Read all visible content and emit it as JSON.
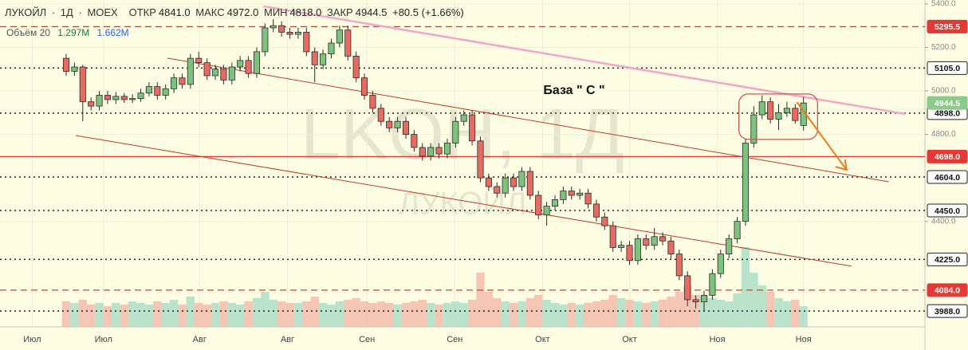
{
  "chart_data": {
    "type": "candlestick",
    "header": {
      "symbol": "ЛУКОЙЛ",
      "separator": "·",
      "interval": "1Д",
      "exchange": "MOEX",
      "ohlc": [
        {
          "label": "ОТКР",
          "value": "4841.0"
        },
        {
          "label": "МАКС",
          "value": "4972.0"
        },
        {
          "label": "МИН",
          "value": "4818.0"
        },
        {
          "label": "ЗАКР",
          "value": "4944.5"
        }
      ],
      "change": "+80.5 (+1.66%)"
    },
    "volume_legend": {
      "label": "Объём 20",
      "values": [
        "1.297M",
        "1.662M"
      ]
    },
    "watermark": {
      "main": "LKOH, 1Д",
      "sub": "ЛУКОЙЛ"
    },
    "annotation": "База \" С \"",
    "xlim": [
      -7.99,
      103.66
    ],
    "ylim": [
      3915,
      5418
    ],
    "vlim": [
      0,
      8
    ],
    "xticks": [
      {
        "value": -4.1,
        "label": "Июл"
      },
      {
        "value": 4.5,
        "label": "Июл"
      },
      {
        "value": 16.1,
        "label": "Авг"
      },
      {
        "value": 26.7,
        "label": "Авг"
      },
      {
        "value": 36.3,
        "label": "Сен"
      },
      {
        "value": 46.9,
        "label": "Сен"
      },
      {
        "value": 57.5,
        "label": "Окт"
      },
      {
        "value": 68.0,
        "label": "Окт"
      },
      {
        "value": 78.6,
        "label": "Ноя"
      },
      {
        "value": 89.0,
        "label": "Ноя"
      }
    ],
    "yticks": [
      {
        "value": 5400,
        "label": "5400.0"
      },
      {
        "value": 5200,
        "label": "5200.0"
      },
      {
        "value": 5000,
        "label": "5000.0"
      },
      {
        "value": 4800,
        "label": "4800.0"
      },
      {
        "value": 4400,
        "label": "4400.0"
      }
    ],
    "grid": true,
    "colors": {
      "up": "#7cc47e",
      "down": "#e86b63",
      "outline": "#2b2b2b",
      "up_volume": "#a9dcc6",
      "down_volume": "#f2b8a8",
      "background": "#fdfde4"
    },
    "levels": [
      {
        "value": 5295.5,
        "label": "5295.5",
        "color": "#e53935",
        "style": "dashed"
      },
      {
        "value": 5105,
        "label": "5105.0",
        "color": "#222222",
        "style": "dotted"
      },
      {
        "value": 4898,
        "label": "4898.0",
        "color": "#222222",
        "style": "dotted"
      },
      {
        "value": 4698,
        "label": "4698.0",
        "color": "#e53935",
        "style": "solid"
      },
      {
        "value": 4604,
        "label": "4604.0",
        "color": "#222222",
        "style": "dotted"
      },
      {
        "value": 4450,
        "label": "4450.0",
        "color": "#222222",
        "style": "dotted"
      },
      {
        "value": 4225,
        "label": "4225.0",
        "color": "#222222",
        "style": "dotted"
      },
      {
        "value": 4084,
        "label": "4084.0",
        "color": "#e53935",
        "style": "dashed"
      },
      {
        "value": 3988,
        "label": "3988.0",
        "color": "#222222",
        "style": "dotted"
      }
    ],
    "last_price": {
      "value": 4944.5,
      "label": "4944.5",
      "color": "#8cc98a"
    },
    "trendlines": [
      {
        "color": "#f4a6c8",
        "x": [
          23.8,
          101.3
        ],
        "y": [
          5389,
          4894
        ]
      },
      {
        "color": "#c0392b",
        "x": [
          12.2,
          99.3
        ],
        "y": [
          5151,
          4582
        ]
      },
      {
        "color": "#c0392b",
        "x": [
          1.15,
          94.8
        ],
        "y": [
          4795,
          4194
        ]
      }
    ],
    "arrow": {
      "color": "#f07a1a",
      "x": [
        88.2,
        94.2
      ],
      "y": [
        4949,
        4637
      ]
    },
    "box": {
      "color": "#d9534f",
      "x": [
        81.2,
        90.7
      ],
      "y": [
        4986,
        4777
      ]
    },
    "series": {
      "open": [
        5150,
        5090,
        5110,
        4950,
        4930,
        4980,
        4960,
        4975,
        4960,
        4965,
        4990,
        5020,
        4980,
        5010,
        5060,
        5030,
        5150,
        5130,
        5070,
        5100,
        5050,
        5110,
        5140,
        5080,
        5180,
        5290,
        5300,
        5270,
        5260,
        5270,
        5180,
        5120,
        5170,
        5220,
        5280,
        5160,
        5060,
        4980,
        4920,
        4860,
        4830,
        4860,
        4800,
        4740,
        4700,
        4740,
        4710,
        4760,
        4860,
        4890,
        4770,
        4600,
        4560,
        4530,
        4600,
        4560,
        4630,
        4520,
        4430,
        4470,
        4500,
        4540,
        4520,
        4530,
        4480,
        4420,
        4380,
        4280,
        4290,
        4220,
        4320,
        4290,
        4330,
        4310,
        4250,
        4150,
        4040,
        4030,
        4060,
        4160,
        4250,
        4320,
        4400,
        4760,
        4890,
        4950,
        4870,
        4900,
        4920,
        4841
      ],
      "high": [
        5170,
        5130,
        5120,
        4970,
        5000,
        5000,
        4995,
        4990,
        4985,
        5010,
        5040,
        5040,
        5030,
        5080,
        5080,
        5170,
        5180,
        5150,
        5120,
        5120,
        5130,
        5160,
        5160,
        5200,
        5310,
        5330,
        5320,
        5290,
        5290,
        5290,
        5200,
        5190,
        5240,
        5300,
        5300,
        5180,
        5080,
        5000,
        4940,
        4880,
        4880,
        4880,
        4820,
        4760,
        4760,
        4760,
        4780,
        4880,
        4910,
        4910,
        4790,
        4620,
        4580,
        4620,
        4620,
        4650,
        4650,
        4540,
        4490,
        4520,
        4560,
        4560,
        4550,
        4550,
        4500,
        4440,
        4400,
        4310,
        4310,
        4340,
        4340,
        4370,
        4350,
        4330,
        4270,
        4170,
        4060,
        4080,
        4180,
        4270,
        4340,
        4420,
        4780,
        4930,
        4980,
        4970,
        4940,
        4950,
        4940,
        4972
      ],
      "low": [
        5070,
        5070,
        4860,
        4910,
        4910,
        4940,
        4940,
        4945,
        4945,
        4950,
        4975,
        4960,
        4960,
        4990,
        5010,
        5010,
        5110,
        5050,
        5050,
        5030,
        5030,
        5090,
        5060,
        5060,
        5160,
        5270,
        5250,
        5240,
        5240,
        5160,
        5040,
        5100,
        5150,
        5200,
        5140,
        5040,
        4960,
        4900,
        4840,
        4810,
        4810,
        4780,
        4720,
        4680,
        4680,
        4690,
        4690,
        4740,
        4840,
        4750,
        4580,
        4540,
        4510,
        4510,
        4540,
        4540,
        4500,
        4410,
        4380,
        4450,
        4480,
        4500,
        4500,
        4460,
        4400,
        4360,
        4260,
        4260,
        4200,
        4200,
        4270,
        4270,
        4290,
        4230,
        4130,
        4010,
        4000,
        3990,
        4040,
        4140,
        4230,
        4300,
        4380,
        4740,
        4870,
        4850,
        4820,
        4880,
        4850,
        4818
      ],
      "close": [
        5090,
        5110,
        4950,
        4930,
        4980,
        4960,
        4975,
        4960,
        4965,
        4990,
        5020,
        4980,
        5010,
        5060,
        5030,
        5150,
        5130,
        5070,
        5100,
        5050,
        5110,
        5140,
        5080,
        5180,
        5290,
        5300,
        5270,
        5260,
        5270,
        5180,
        5120,
        5170,
        5220,
        5280,
        5160,
        5060,
        4980,
        4920,
        4860,
        4830,
        4860,
        4800,
        4740,
        4700,
        4740,
        4710,
        4760,
        4860,
        4890,
        4770,
        4600,
        4560,
        4530,
        4600,
        4560,
        4630,
        4520,
        4430,
        4470,
        4500,
        4540,
        4520,
        4530,
        4480,
        4420,
        4380,
        4280,
        4290,
        4220,
        4320,
        4290,
        4330,
        4310,
        4250,
        4150,
        4040,
        4030,
        4060,
        4160,
        4250,
        4320,
        4400,
        4760,
        4890,
        4950,
        4870,
        4900,
        4920,
        4864,
        4944.5
      ],
      "volume": [
        1.6,
        1.5,
        1.7,
        1.4,
        1.5,
        1.3,
        1.5,
        1.4,
        1.6,
        1.5,
        1.4,
        1.6,
        1.5,
        1.7,
        1.4,
        1.9,
        1.5,
        1.4,
        1.5,
        1.6,
        1.5,
        1.4,
        1.6,
        1.8,
        2.2,
        1.7,
        1.6,
        1.5,
        1.5,
        1.6,
        1.9,
        1.5,
        1.4,
        1.6,
        1.7,
        1.8,
        1.6,
        1.5,
        1.6,
        1.5,
        1.4,
        1.5,
        1.6,
        1.7,
        1.5,
        1.4,
        1.5,
        1.6,
        1.5,
        1.7,
        3.4,
        2.2,
        1.8,
        1.6,
        1.5,
        1.6,
        1.8,
        2.0,
        1.7,
        1.5,
        1.4,
        1.5,
        1.4,
        1.5,
        1.6,
        1.7,
        2.0,
        1.8,
        1.7,
        1.6,
        1.5,
        1.6,
        1.7,
        1.9,
        2.2,
        2.6,
        2.0,
        1.9,
        1.8,
        1.7,
        1.6,
        2.1,
        5.0,
        3.4,
        2.6,
        2.2,
        1.8,
        1.6,
        1.7,
        1.297
      ]
    }
  }
}
